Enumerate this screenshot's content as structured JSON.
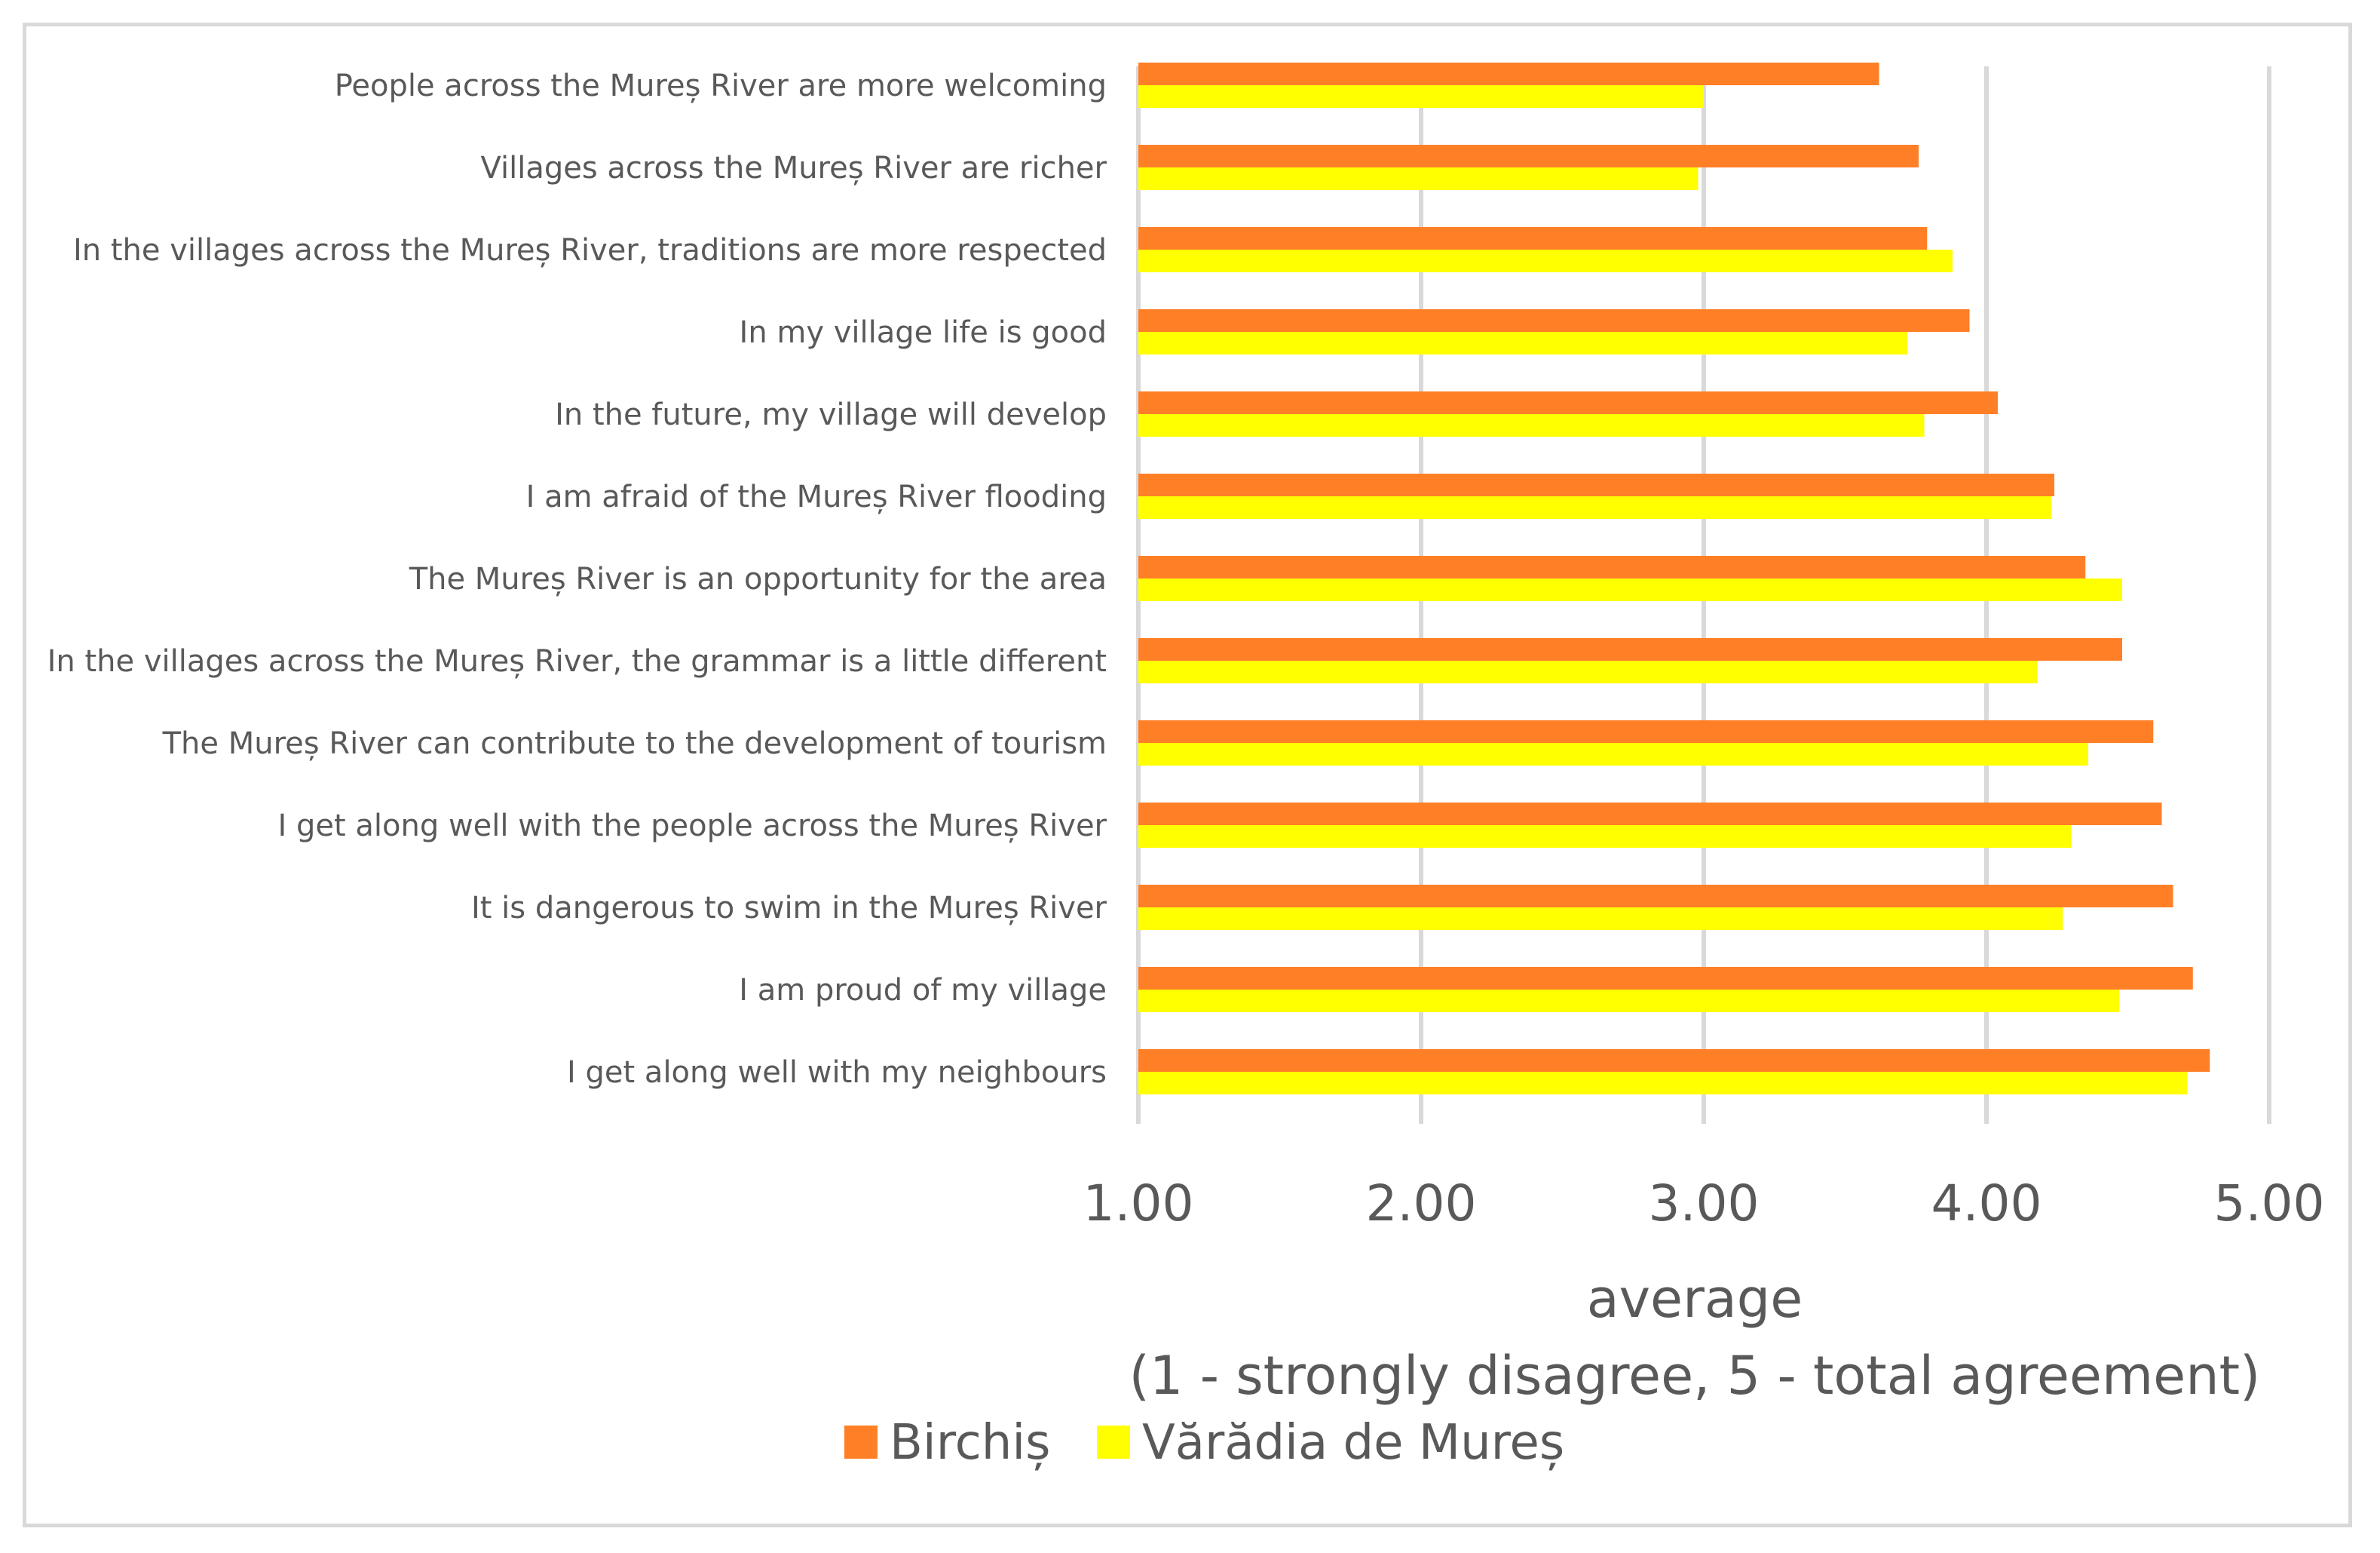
{
  "chart_data": {
    "type": "bar",
    "orientation": "horizontal",
    "categories": [
      "People across the Mureș River are more welcoming",
      "Villages across the Mureș River are richer",
      "In the villages across the Mureș River, traditions are more respected",
      "In my village life is good",
      "In the future, my village will develop",
      "I am afraid of the Mureș River flooding",
      "The Mureș River is an opportunity for the area",
      "In the villages across the Mureș River, the grammar is a little different",
      "The Mureș River can contribute to the development of tourism",
      "I get along well with the people across the Mureș River",
      "It is dangerous to swim in the Mureș River",
      "I am proud of my village",
      "I get along well with my neighbours"
    ],
    "series": [
      {
        "name": "Birchiș",
        "color": "#ff7f27",
        "values": [
          3.62,
          3.76,
          3.79,
          3.94,
          4.04,
          4.24,
          4.35,
          4.48,
          4.59,
          4.62,
          4.66,
          4.73,
          4.79
        ]
      },
      {
        "name": "Vărădia de Mureș",
        "color": "#ffff00",
        "values": [
          3.0,
          2.98,
          3.88,
          3.72,
          3.78,
          4.23,
          4.48,
          4.18,
          4.36,
          4.3,
          4.27,
          4.47,
          4.71
        ]
      }
    ],
    "xlim": [
      1.0,
      5.0
    ],
    "xticks": [
      "1.00",
      "2.00",
      "3.00",
      "4.00",
      "5.00"
    ],
    "xlabel_line1": "average",
    "xlabel_line2": "(1 - strongly disagree, 5 - total agreement)",
    "ylabel": "",
    "grid": "vertical",
    "legend_position": "bottom"
  }
}
